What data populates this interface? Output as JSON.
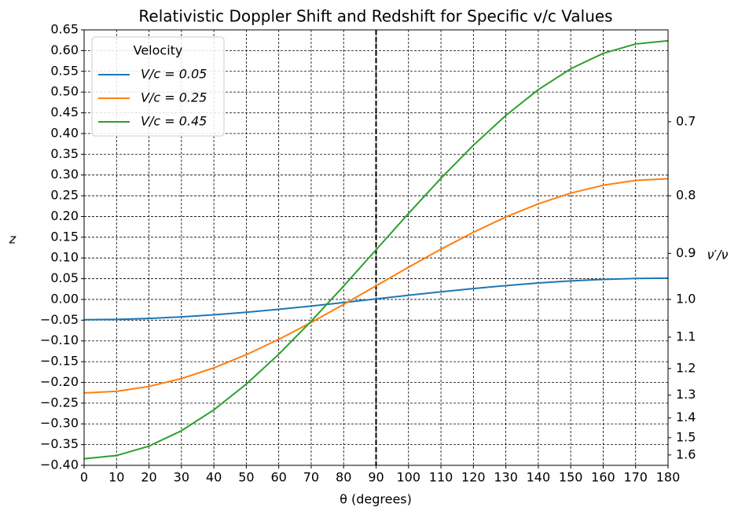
{
  "chart_data": {
    "type": "line",
    "title": "Relativistic Doppler Shift and Redshift for Specific v/c Values",
    "xlabel": "θ (degrees)",
    "ylabel": "z",
    "y2label": "ν′/ν",
    "x": [
      0,
      10,
      20,
      30,
      40,
      50,
      60,
      70,
      80,
      90,
      100,
      110,
      120,
      130,
      140,
      150,
      160,
      170,
      180
    ],
    "series": [
      {
        "name": "V/c = 0.05",
        "color": "#1f77b4",
        "values": [
          -0.0488,
          -0.0481,
          -0.0458,
          -0.0421,
          -0.0371,
          -0.0309,
          -0.0238,
          -0.0159,
          -0.0074,
          0.0013,
          0.01,
          0.0184,
          0.0263,
          0.0334,
          0.0396,
          0.0446,
          0.0483,
          0.0506,
          0.0513
        ]
      },
      {
        "name": "V/c = 0.25",
        "color": "#ff7f0e",
        "values": [
          -0.2254,
          -0.2215,
          -0.2098,
          -0.1908,
          -0.165,
          -0.1332,
          -0.0963,
          -0.0555,
          -0.012,
          0.0328,
          0.0776,
          0.1211,
          0.1619,
          0.1988,
          0.2306,
          0.2564,
          0.2754,
          0.2871,
          0.291
        ]
      },
      {
        "name": "V/c = 0.45",
        "color": "#2ca02c",
        "values": [
          -0.3841,
          -0.3764,
          -0.3537,
          -0.3166,
          -0.2662,
          -0.2041,
          -0.1322,
          -0.0525,
          0.0323,
          0.1198,
          0.2073,
          0.2921,
          0.3718,
          0.4437,
          0.5058,
          0.5562,
          0.5933,
          0.616,
          0.6237
        ]
      }
    ],
    "legend_title": "Velocity",
    "legend": "upper left",
    "vline": 90,
    "xlim": [
      0,
      180
    ],
    "xticks": [
      0,
      10,
      20,
      30,
      40,
      50,
      60,
      70,
      80,
      90,
      100,
      110,
      120,
      130,
      140,
      150,
      160,
      170,
      180
    ],
    "ylim": [
      -0.4,
      0.65
    ],
    "yticks": [
      {
        "value": -0.4,
        "label": "−0.40"
      },
      {
        "value": -0.35,
        "label": "−0.35"
      },
      {
        "value": -0.3,
        "label": "−0.30"
      },
      {
        "value": -0.25,
        "label": "−0.25"
      },
      {
        "value": -0.2,
        "label": "−0.20"
      },
      {
        "value": -0.15,
        "label": "−0.15"
      },
      {
        "value": -0.1,
        "label": "−0.10"
      },
      {
        "value": -0.05,
        "label": "−0.05"
      },
      {
        "value": 0,
        "label": "0.00"
      },
      0.05,
      {
        "value": 0.1,
        "label": "0.10"
      },
      0.15,
      {
        "value": 0.2,
        "label": "0.20"
      },
      0.25,
      {
        "value": 0.3,
        "label": "0.30"
      },
      0.35,
      {
        "value": 0.4,
        "label": "0.40"
      },
      0.45,
      {
        "value": 0.5,
        "label": "0.50"
      },
      0.55,
      {
        "value": 0.6,
        "label": "0.60"
      },
      0.65
    ],
    "y2scale": "reciprocal",
    "y2lim": [
      1.6667,
      0.6061
    ],
    "y2ticks": [
      0.7,
      0.8,
      0.9,
      {
        "value": 1,
        "label": "1.0"
      },
      1.1,
      1.2,
      1.3,
      1.4,
      1.5,
      1.6
    ],
    "grid": true
  }
}
